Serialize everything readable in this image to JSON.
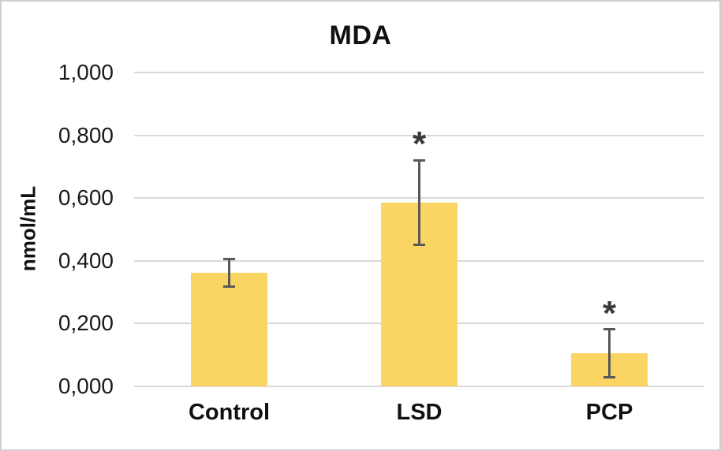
{
  "chart_data": {
    "type": "bar",
    "title": "MDA",
    "xlabel": "",
    "ylabel": "nmol/mL",
    "categories": [
      "Control",
      "LSD",
      "PCP"
    ],
    "series": [
      {
        "name": "MDA",
        "values": [
          0.362,
          0.585,
          0.105
        ],
        "error_plus": [
          0.045,
          0.135,
          0.077
        ],
        "error_minus": [
          0.045,
          0.135,
          0.077
        ]
      }
    ],
    "annotations": [
      "",
      "*",
      "*"
    ],
    "ylim": [
      0,
      1.0
    ],
    "ytick_values": [
      0,
      0.2,
      0.4,
      0.6,
      0.8,
      1.0
    ],
    "ytick_labels": [
      "0,000",
      "0,200",
      "0,400",
      "0,600",
      "0,800",
      "1,000"
    ],
    "decimal_separator": ",",
    "grid": true,
    "legend": "none",
    "colors": {
      "bar_fill": "#FBD564",
      "error_bar": "#595959",
      "gridline": "#D9D9D9",
      "text": "#111111",
      "annotation": "#3A3A3A",
      "frame_border": "#CFCFCF",
      "background": "#FFFFFF"
    }
  }
}
